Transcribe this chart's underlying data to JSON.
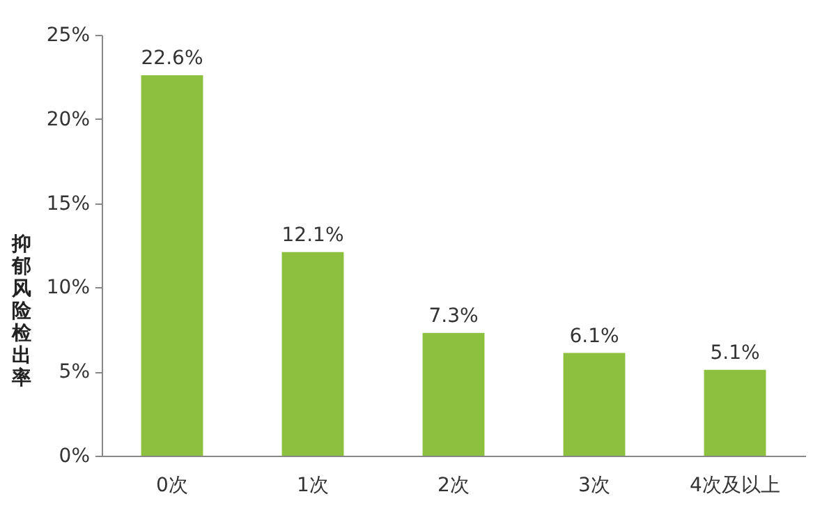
{
  "chart_data": {
    "type": "bar",
    "ylabel": "抑郁风险检出率",
    "categories": [
      "0次",
      "1次",
      "2次",
      "3次",
      "4次及以上"
    ],
    "values": [
      22.6,
      12.1,
      7.3,
      6.1,
      5.1
    ],
    "value_labels": [
      "22.6%",
      "12.1%",
      "7.3%",
      "6.1%",
      "5.1%"
    ],
    "color": "#8dc03f",
    "ylim": [
      0,
      25
    ],
    "yticks": [
      {
        "value": 0,
        "label": "0%"
      },
      {
        "value": 5,
        "label": "5%"
      },
      {
        "value": 10,
        "label": "10%"
      },
      {
        "value": 15,
        "label": "15%"
      },
      {
        "value": 20,
        "label": "20%"
      },
      {
        "value": 25,
        "label": "25%"
      }
    ],
    "grid": false
  }
}
